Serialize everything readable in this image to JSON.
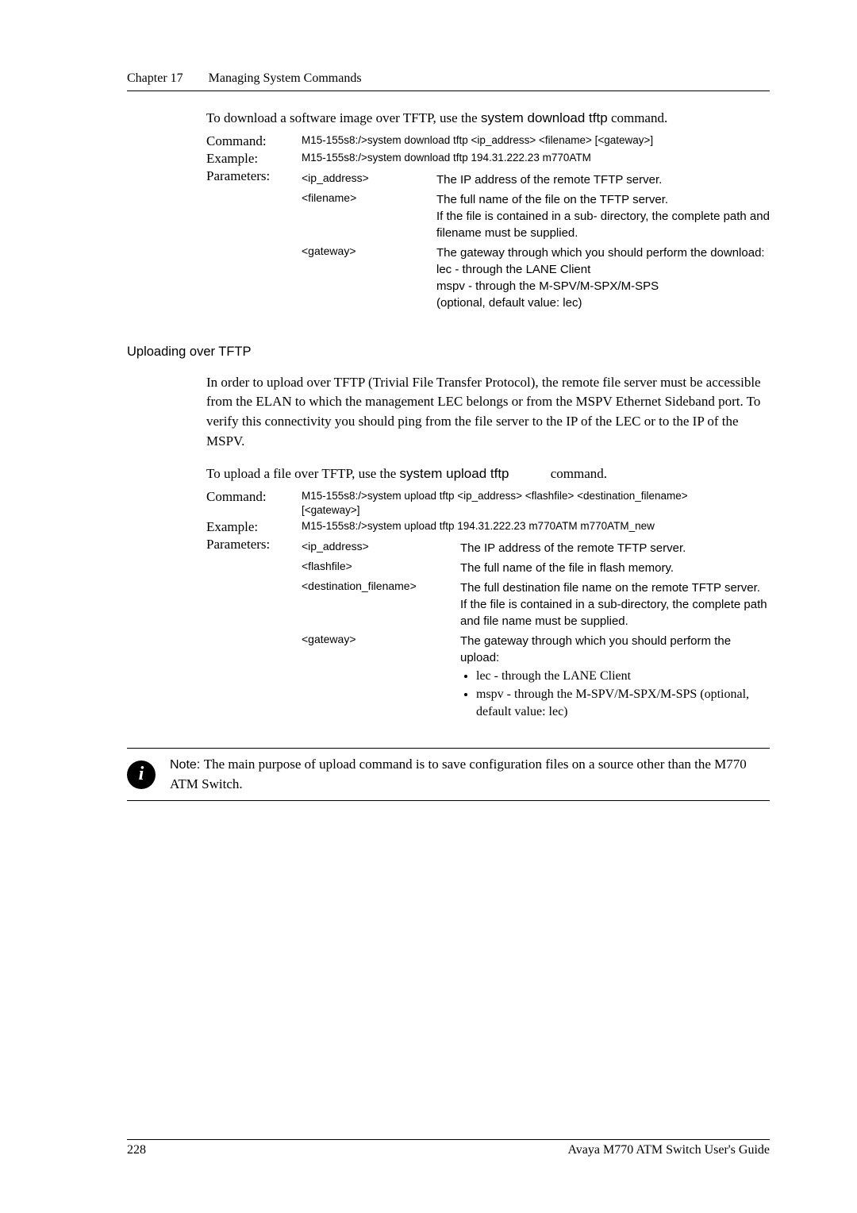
{
  "header": {
    "chapter": "Chapter 17",
    "title": "Managing System Commands"
  },
  "intro1": {
    "prefix": "To download a software image over TFTP, use the ",
    "cmd": "system download tftp",
    "suffix": " command."
  },
  "block1": {
    "command_label": "Command:",
    "command_text": "M15-155s8:/>system download tftp <ip_address> <filename> [<gateway>]",
    "example_label": "Example:",
    "example_text": "M15-155s8:/>system download tftp 194.31.222.23 m770ATM",
    "params_label": "Parameters:",
    "params": [
      {
        "key": "<ip_address>",
        "val": "The IP address of the remote TFTP server."
      },
      {
        "key": "<filename>",
        "val": "The full name of the file on the TFTP server.\nIf the file is contained in a sub- directory, the complete path and filename must be supplied."
      },
      {
        "key": "<gateway>",
        "val": "The gateway through which you  should perform the download:\nlec - through the LANE Client\nmspv - through the M-SPV/M-SPX/M-SPS\n(optional, default value: lec)"
      }
    ]
  },
  "section2_heading": "Uploading over TFTP",
  "section2_para": "In order to upload over TFTP (Trivial File Transfer Protocol), the remote file server must be accessible from the ELAN to which the management LEC belongs or from the MSPV Ethernet Sideband port. To verify this connectivity you should ping from the file server to the IP of the LEC or to the IP of the MSPV.",
  "intro2": {
    "prefix": "To upload a file over TFTP, use the ",
    "cmd": "system upload tftp",
    "suffix": " command."
  },
  "block2": {
    "command_label": "Command:",
    "command_text": "M15-155s8:/>system upload tftp <ip_address> <flashfile> <destination_filename> [<gateway>]",
    "example_label": "Example:",
    "example_text": "M15-155s8:/>system upload tftp 194.31.222.23 m770ATM m770ATM_new",
    "params_label": "Parameters:",
    "params": [
      {
        "key": "<ip_address>",
        "val": "The IP address of the remote TFTP server."
      },
      {
        "key": "<flashfile>",
        "val": "The full name of the file in flash memory."
      },
      {
        "key": "<destination_filename>",
        "val": "The full destination file name on the remote TFTP server. If the file is contained in a sub-directory, the complete path and file name must be supplied."
      }
    ],
    "gateway_key": "<gateway>",
    "gateway_lead": "The gateway through which you should perform the upload:",
    "gateway_b1": "lec - through the LANE Client",
    "gateway_b2": "mspv - through the M-SPV/M-SPX/M-SPS (optional, default value: lec)"
  },
  "note": {
    "icon_text": "i",
    "label": "Note: ",
    "text": "The main purpose of upload command is to save configuration files on a source other than the M770 ATM Switch."
  },
  "footer": {
    "page_num": "228",
    "right_text": "Avaya M770 ATM Switch User's Guide"
  },
  "styling": {
    "page_bg": "#ffffff",
    "text_color": "#000000",
    "serif_font": "Palatino Linotype",
    "sans_font": "Arial",
    "body_fontsize": 17,
    "mono_fontsize": 14,
    "header_fontsize": 16,
    "footer_fontsize": 16,
    "rule_color": "#000000"
  }
}
